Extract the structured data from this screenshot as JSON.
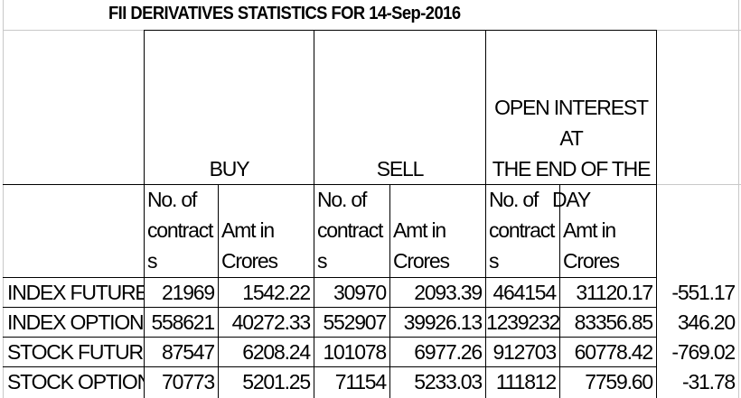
{
  "title": "FII DERIVATIVES STATISTICS FOR 14-Sep-2016",
  "headers": {
    "buy": "BUY",
    "sell": "SELL",
    "oi_line1": "OPEN INTEREST AT",
    "oi_line2": "THE END OF THE",
    "oi_line3": "DAY"
  },
  "subheaders": {
    "contracts_line1": "No. of",
    "contracts_line2": "contract",
    "contracts_line3": "s",
    "amt_line1": "Amt in",
    "amt_line2": "Crores"
  },
  "rows": [
    {
      "label": "INDEX FUTURES",
      "buy_contracts": "21969",
      "buy_amt": "1542.22",
      "sell_contracts": "30970",
      "sell_amt": "2093.39",
      "oi_contracts": "464154",
      "oi_amt": "31120.17",
      "net": "-551.17"
    },
    {
      "label": "INDEX OPTIONS",
      "buy_contracts": "558621",
      "buy_amt": "40272.33",
      "sell_contracts": "552907",
      "sell_amt": "39926.13",
      "oi_contracts": "1239232",
      "oi_amt": "83356.85",
      "net": "346.20"
    },
    {
      "label": "STOCK FUTURES",
      "buy_contracts": "87547",
      "buy_amt": "6208.24",
      "sell_contracts": "101078",
      "sell_amt": "6977.26",
      "oi_contracts": "912703",
      "oi_amt": "60778.42",
      "net": "-769.02"
    },
    {
      "label": "STOCK OPTIONS",
      "buy_contracts": "70773",
      "buy_amt": "5201.25",
      "sell_contracts": "71154",
      "sell_amt": "5233.03",
      "oi_contracts": "111812",
      "oi_amt": "7759.60",
      "net": "-31.78"
    }
  ]
}
